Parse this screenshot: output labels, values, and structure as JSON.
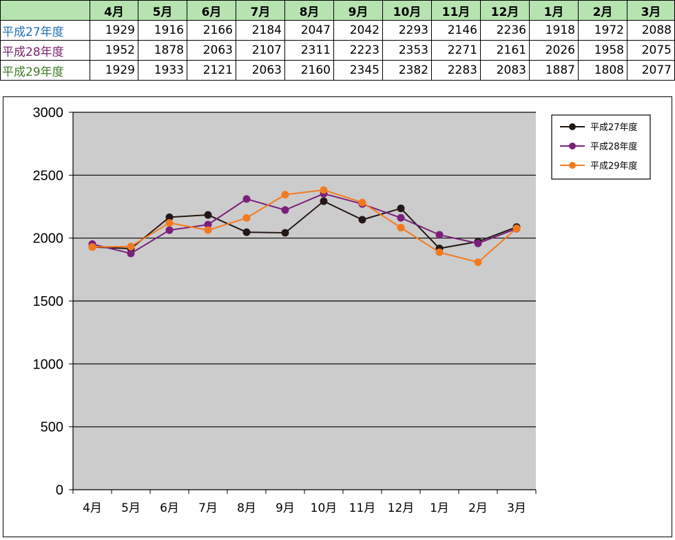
{
  "table": {
    "months": [
      "4月",
      "5月",
      "6月",
      "7月",
      "8月",
      "9月",
      "10月",
      "11月",
      "12月",
      "1月",
      "2月",
      "3月"
    ],
    "rows": [
      {
        "label": "平成27年度",
        "values": [
          1929,
          1916,
          2166,
          2184,
          2047,
          2042,
          2293,
          2146,
          2236,
          1918,
          1972,
          2088
        ]
      },
      {
        "label": "平成28年度",
        "values": [
          1952,
          1878,
          2063,
          2107,
          2311,
          2223,
          2353,
          2271,
          2161,
          2026,
          1958,
          2075
        ]
      },
      {
        "label": "平成29年度",
        "values": [
          1929,
          1933,
          2121,
          2063,
          2160,
          2345,
          2382,
          2283,
          2083,
          1887,
          1808,
          2077
        ]
      }
    ]
  },
  "colors": {
    "header_bg": "#b7e3b1",
    "plot_bg": "#cccccc",
    "label_colors": [
      "#1f6fb5",
      "#7b1f6b",
      "#3f7a2a"
    ]
  },
  "chart_data": {
    "type": "line",
    "categories": [
      "4月",
      "5月",
      "6月",
      "7月",
      "8月",
      "9月",
      "10月",
      "11月",
      "12月",
      "1月",
      "2月",
      "3月"
    ],
    "series": [
      {
        "name": "平成27年度",
        "color": "#231815",
        "values": [
          1929,
          1916,
          2166,
          2184,
          2047,
          2042,
          2293,
          2146,
          2236,
          1918,
          1972,
          2088
        ]
      },
      {
        "name": "平成28年度",
        "color": "#7b1f7a",
        "values": [
          1952,
          1878,
          2063,
          2107,
          2311,
          2223,
          2353,
          2271,
          2161,
          2026,
          1958,
          2075
        ]
      },
      {
        "name": "平成29年度",
        "color": "#f47a20",
        "values": [
          1929,
          1933,
          2121,
          2063,
          2160,
          2345,
          2382,
          2283,
          2083,
          1887,
          1808,
          2077
        ]
      }
    ],
    "ylim": [
      0,
      3000
    ],
    "yticks": [
      "0",
      "500",
      "1000",
      "1500",
      "2000",
      "2500",
      "3000"
    ],
    "grid": true,
    "legend": "top-right"
  }
}
